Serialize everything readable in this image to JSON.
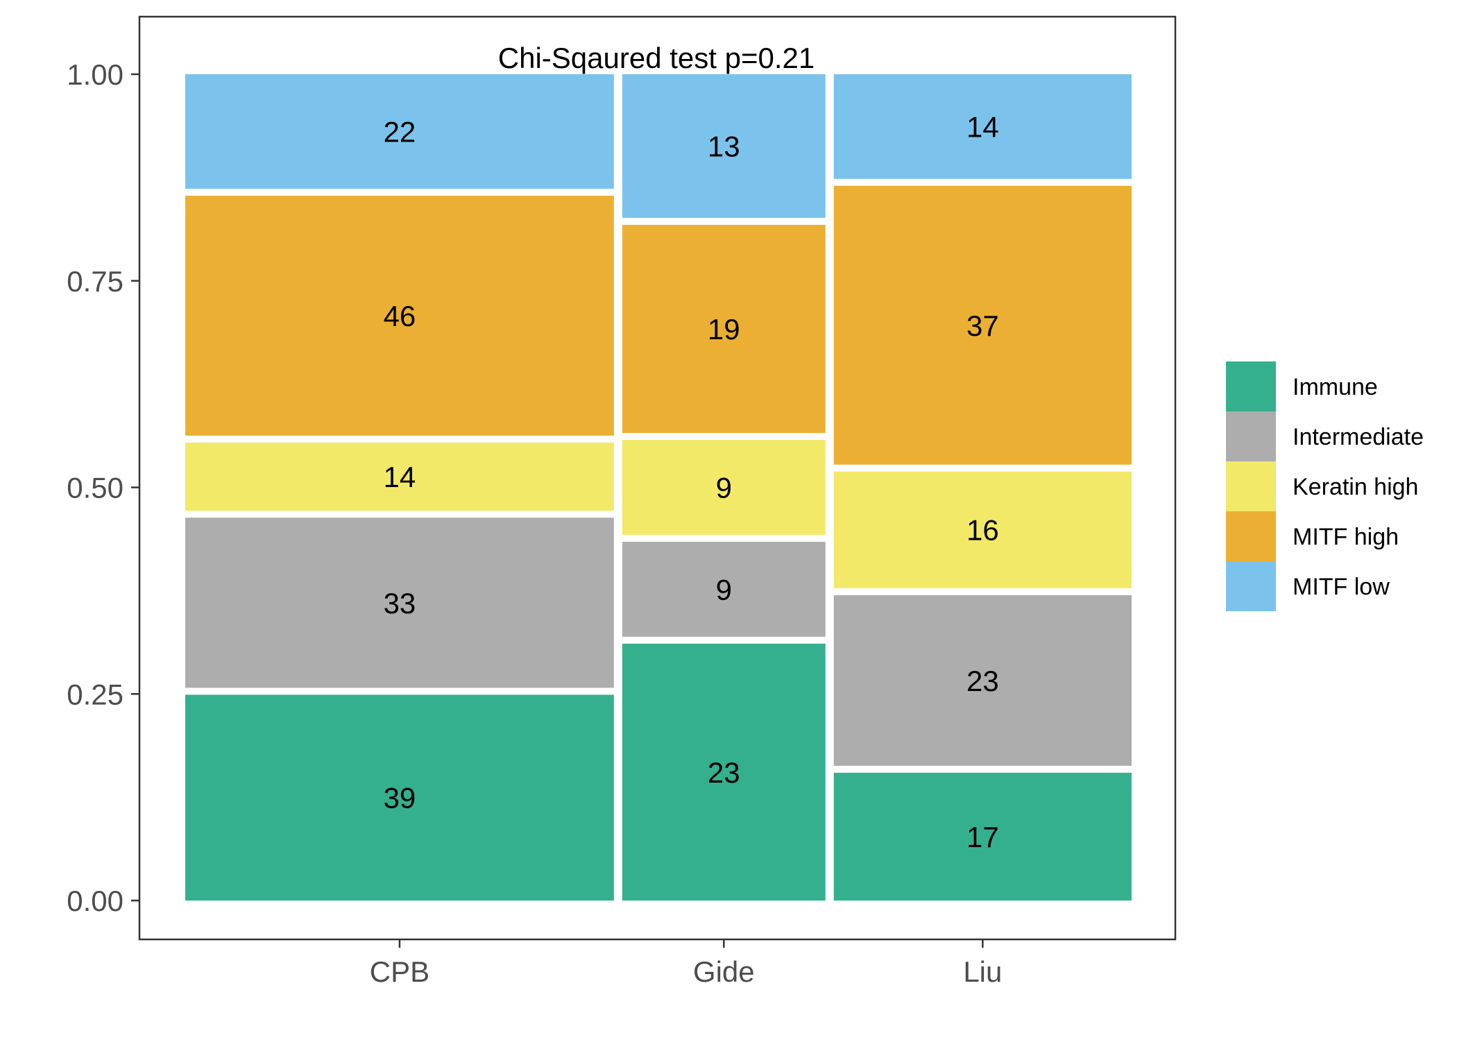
{
  "chart_data": {
    "type": "bar",
    "subtype": "mosaic",
    "title": "Chi-Sqaured test p=0.21",
    "xlabel": "",
    "ylabel": "",
    "ylim": [
      0,
      1
    ],
    "yticks": [
      "0.00",
      "0.25",
      "0.50",
      "0.75",
      "1.00"
    ],
    "categories": [
      "CPB",
      "Gide",
      "Liu"
    ],
    "series": [
      {
        "name": "Immune",
        "color": "#35B08E",
        "values": [
          39,
          23,
          17
        ]
      },
      {
        "name": "Intermediate",
        "color": "#ADADAD",
        "values": [
          33,
          9,
          23
        ]
      },
      {
        "name": "Keratin high",
        "color": "#F2E968",
        "values": [
          14,
          9,
          16
        ]
      },
      {
        "name": "MITF high",
        "color": "#EBB033",
        "values": [
          46,
          19,
          37
        ]
      },
      {
        "name": "MITF low",
        "color": "#7BC3EC",
        "values": [
          22,
          13,
          14
        ]
      }
    ],
    "legend_position": "right",
    "grid": false
  }
}
